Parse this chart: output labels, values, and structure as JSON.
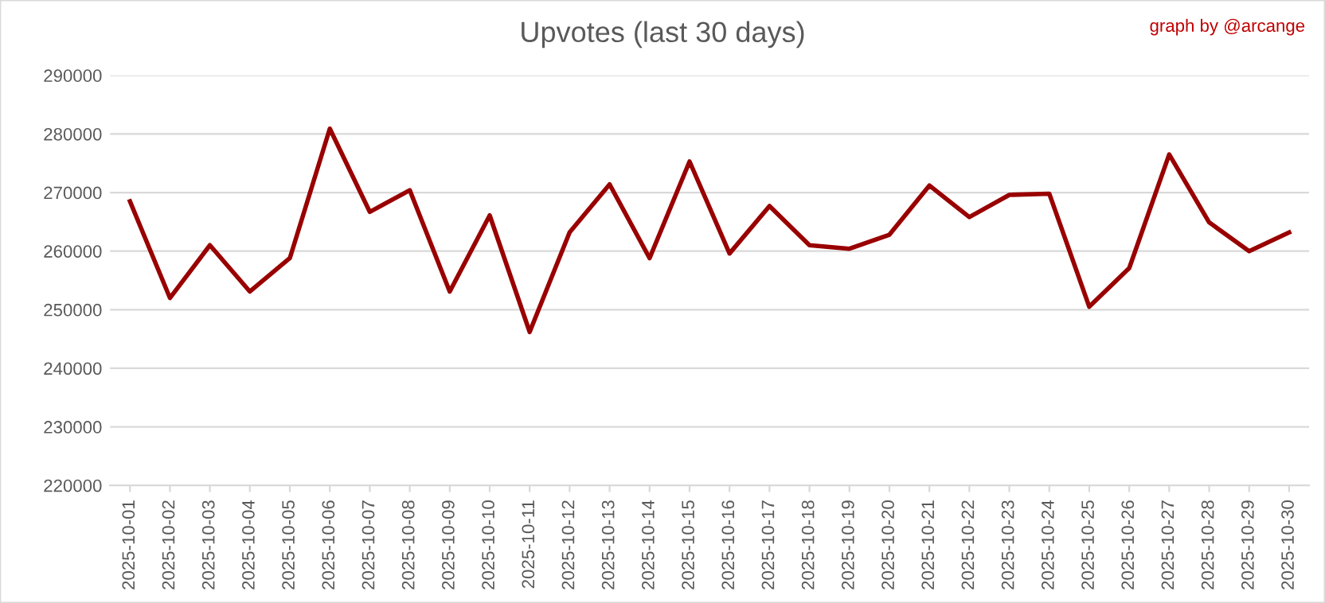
{
  "chart_data": {
    "type": "line",
    "title": "Upvotes (last 30 days)",
    "annotations": [
      "graph by @arcange"
    ],
    "categories": [
      "2025-10-01",
      "2025-10-02",
      "2025-10-03",
      "2025-10-04",
      "2025-10-05",
      "2025-10-06",
      "2025-10-07",
      "2025-10-08",
      "2025-10-09",
      "2025-10-10",
      "2025-10-11",
      "2025-10-12",
      "2025-10-13",
      "2025-10-14",
      "2025-10-15",
      "2025-10-16",
      "2025-10-17",
      "2025-10-18",
      "2025-10-19",
      "2025-10-20",
      "2025-10-21",
      "2025-10-22",
      "2025-10-23",
      "2025-10-24",
      "2025-10-25",
      "2025-10-26",
      "2025-10-27",
      "2025-10-28",
      "2025-10-29",
      "2025-10-30"
    ],
    "series": [
      {
        "color": "#990000",
        "values": [
          268500,
          252000,
          261000,
          253100,
          258800,
          280900,
          266700,
          270400,
          253100,
          266100,
          246200,
          263200,
          271400,
          258800,
          275300,
          259600,
          267700,
          261000,
          260400,
          262800,
          271200,
          265800,
          269600,
          269800,
          250500,
          257100,
          276500,
          264900,
          260000,
          263200
        ]
      }
    ],
    "ylim": [
      220000,
      290000
    ],
    "yticks": [
      220000,
      230000,
      240000,
      250000,
      260000,
      270000,
      280000,
      290000
    ],
    "grid": "y",
    "legend": false,
    "marker": "none",
    "line_style": "solid"
  }
}
